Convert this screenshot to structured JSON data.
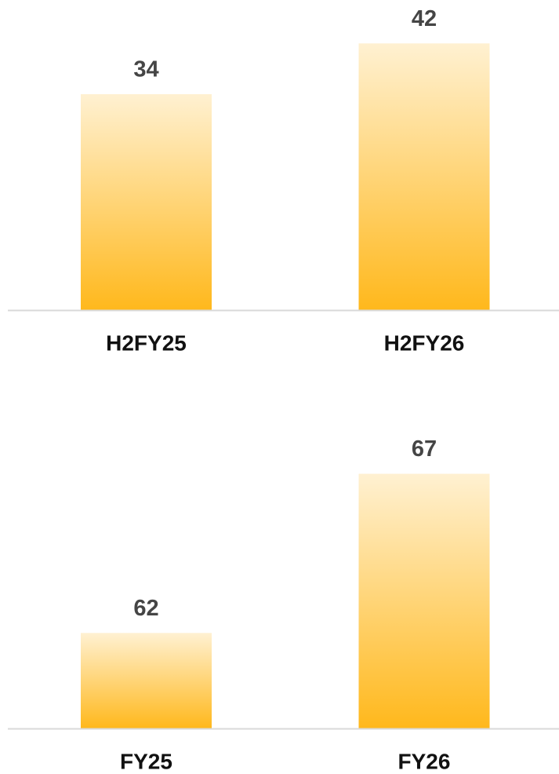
{
  "chart_data": [
    {
      "type": "bar",
      "categories": [
        "H2FY25",
        "H2FY26"
      ],
      "values": [
        34,
        42
      ],
      "color": "#ffb81c",
      "ylim": [
        0,
        45
      ]
    },
    {
      "type": "bar",
      "categories": [
        "FY25",
        "FY26"
      ],
      "values": [
        62,
        67
      ],
      "color": "#ffb81c",
      "ylim": [
        59,
        68
      ]
    }
  ]
}
